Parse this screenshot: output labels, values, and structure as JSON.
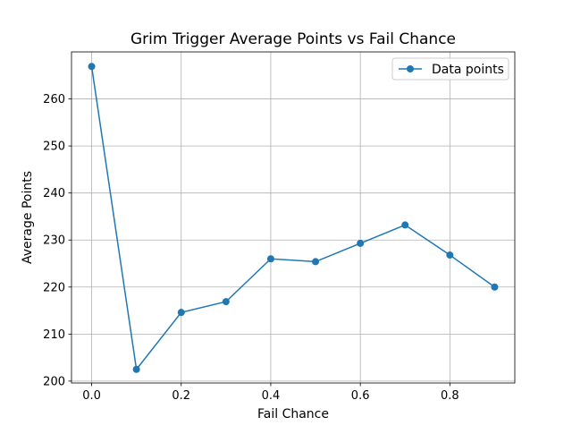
{
  "chart_data": {
    "type": "line",
    "title": "Grim Trigger Average Points vs Fail Chance",
    "xlabel": "Fail Chance",
    "ylabel": "Average Points",
    "x": [
      0.0,
      0.1,
      0.2,
      0.3,
      0.4,
      0.5,
      0.6,
      0.7,
      0.8,
      0.9
    ],
    "series": [
      {
        "name": "Data points",
        "values": [
          266.9,
          202.5,
          214.6,
          216.9,
          226.0,
          225.4,
          229.3,
          233.2,
          226.8,
          220.0
        ],
        "color": "#1f77b4",
        "marker": "circle"
      }
    ],
    "xlim": [
      -0.045,
      0.945
    ],
    "ylim": [
      199.6,
      270.0
    ],
    "xticks": [
      0.0,
      0.2,
      0.4,
      0.6,
      0.8
    ],
    "xtick_labels": [
      "0.0",
      "0.2",
      "0.4",
      "0.6",
      "0.8"
    ],
    "yticks": [
      200,
      210,
      220,
      230,
      240,
      250,
      260
    ],
    "ytick_labels": [
      "200",
      "210",
      "220",
      "230",
      "240",
      "250",
      "260"
    ],
    "grid": true,
    "legend_position": "top-right"
  }
}
